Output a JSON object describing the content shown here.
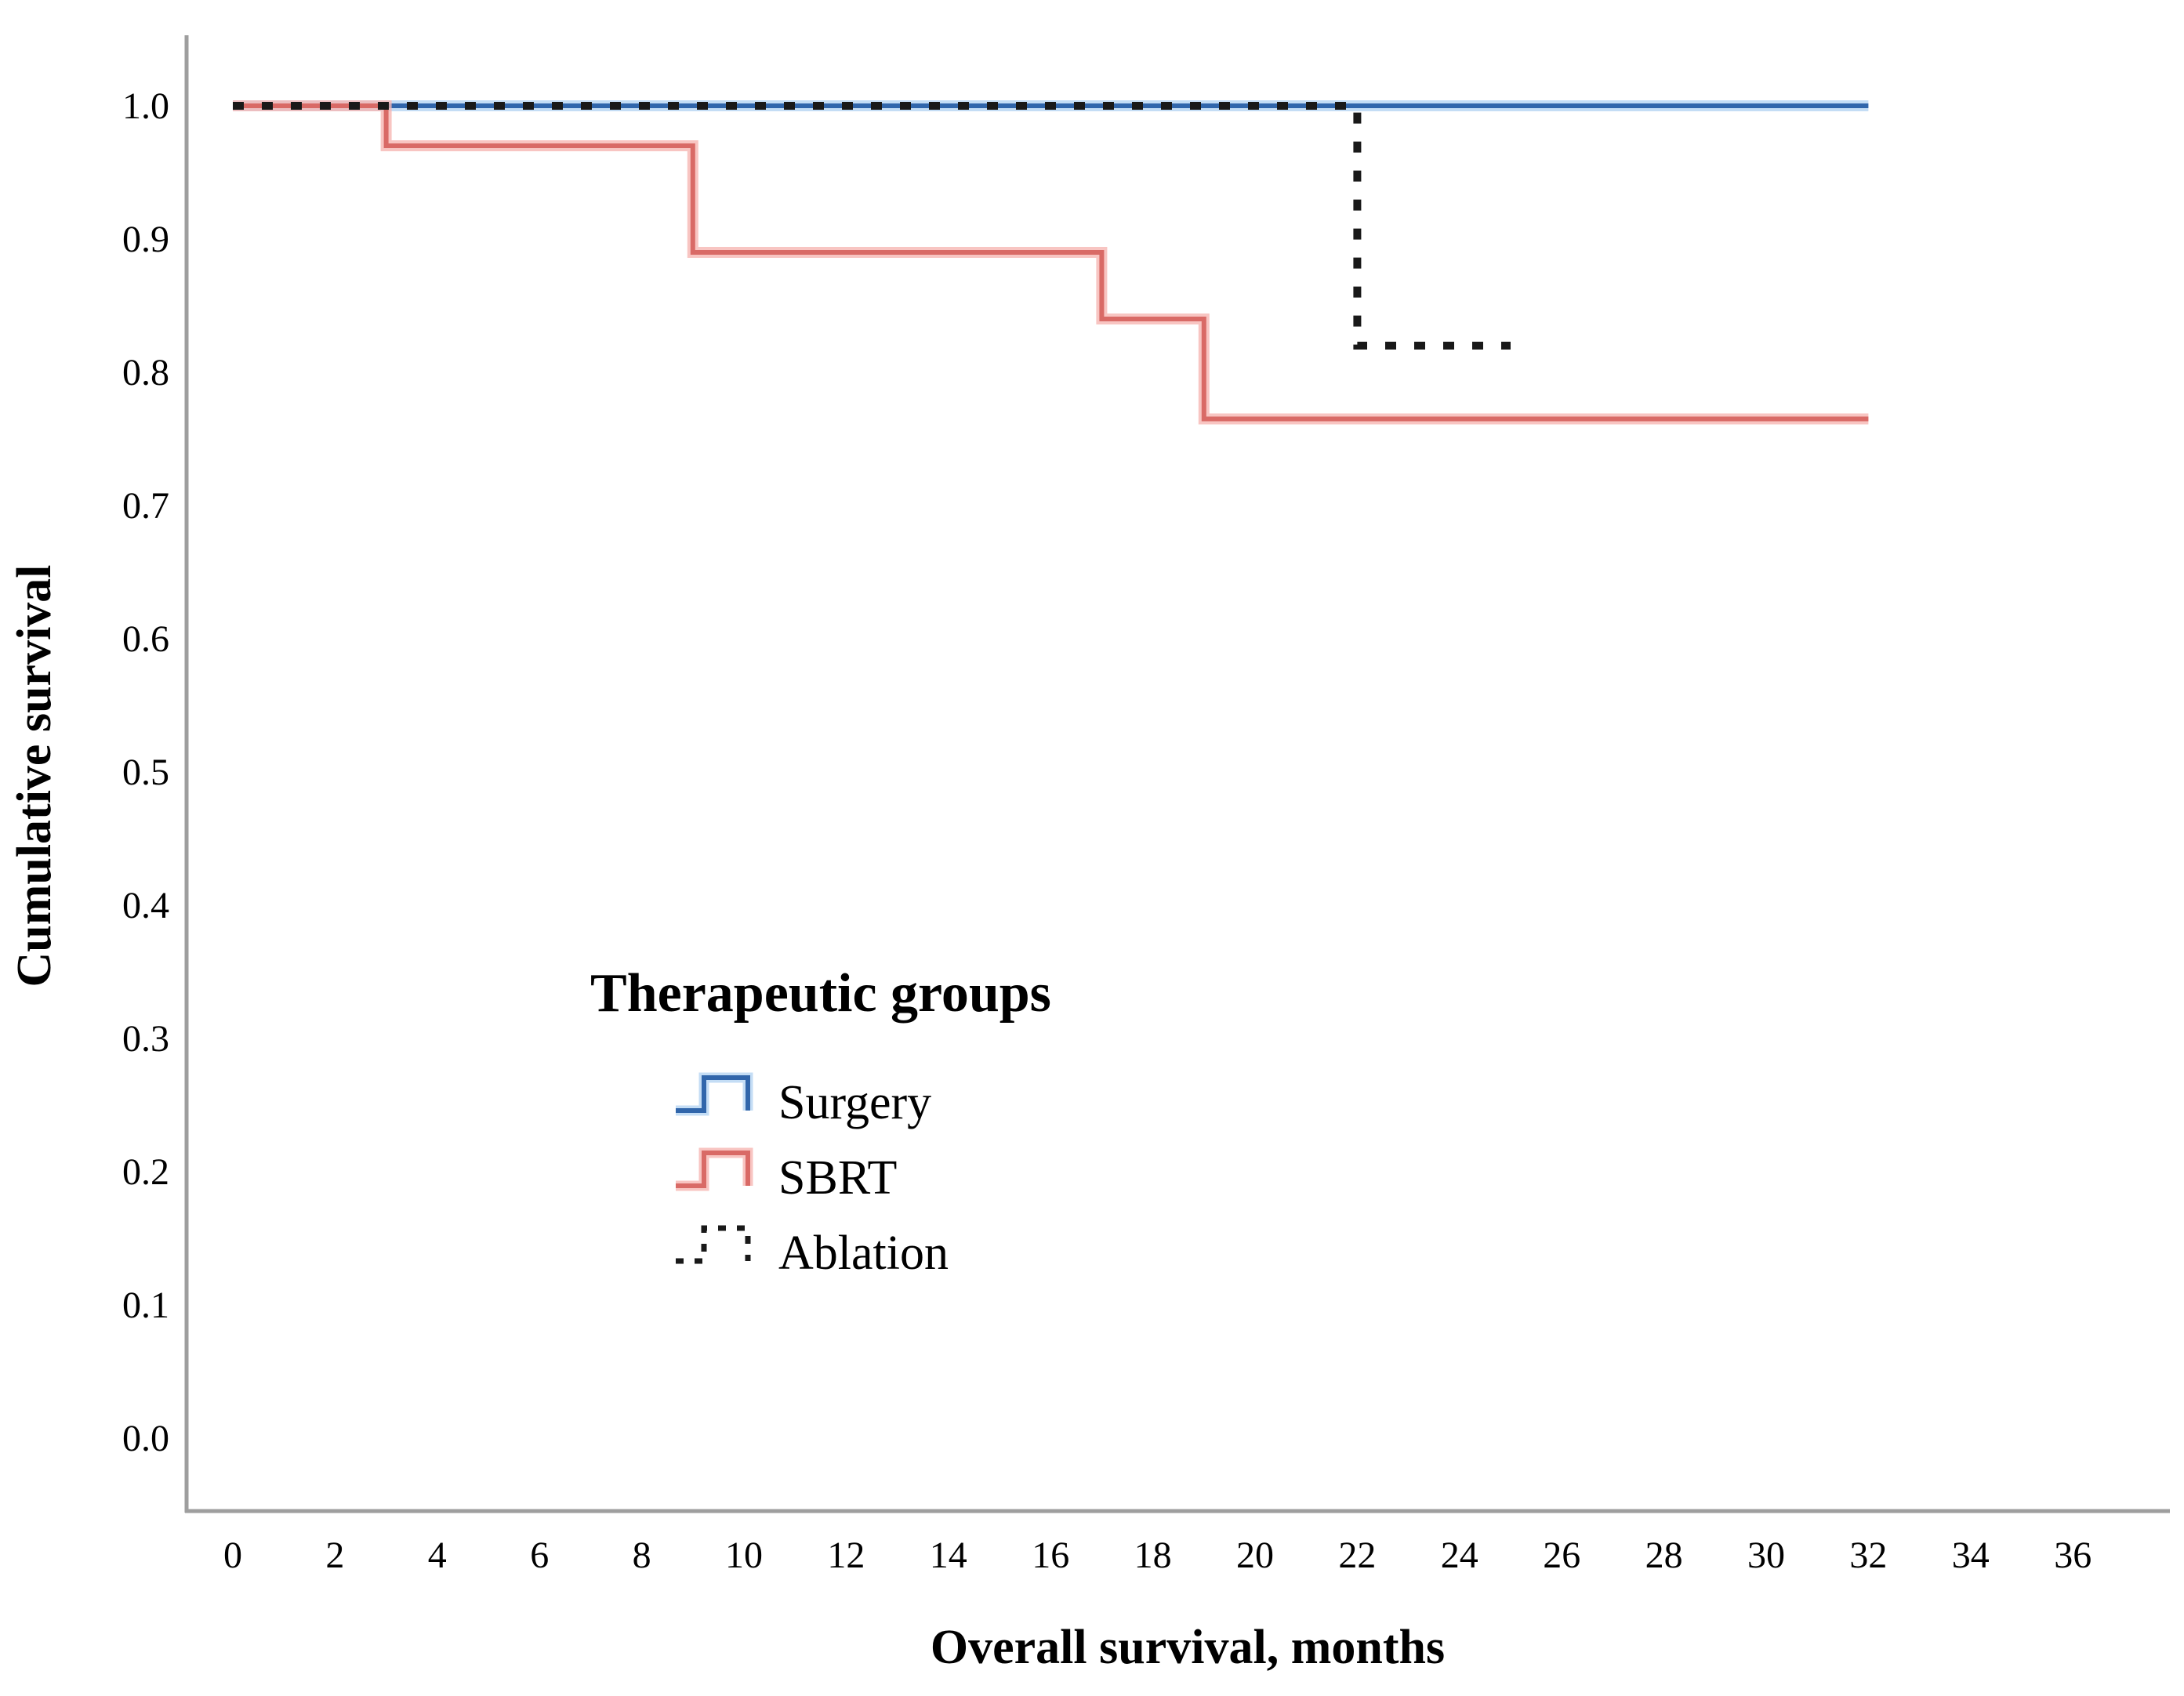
{
  "figure": {
    "background_color": "#ffffff",
    "axis_line_color": "#9e9e9e"
  },
  "axes": {
    "x_title": "Overall survival, months",
    "y_title": "Cumulative survival"
  },
  "legend": {
    "title": "Therapeutic groups",
    "position": "inside-left-middle"
  },
  "chart_data": {
    "type": "line",
    "subtype": "kaplan-meier-step-survival",
    "title": "",
    "xlabel": "Overall survival, months",
    "ylabel": "Cumulative survival",
    "xlim": [
      0,
      36
    ],
    "ylim": [
      0.0,
      1.0
    ],
    "x_ticks": [
      0,
      2,
      4,
      6,
      8,
      10,
      12,
      14,
      16,
      18,
      20,
      22,
      24,
      26,
      28,
      30,
      32,
      34,
      36
    ],
    "y_ticks": [
      "0.0",
      "0.1",
      "0.2",
      "0.3",
      "0.4",
      "0.5",
      "0.6",
      "0.7",
      "0.8",
      "0.9",
      "1.0"
    ],
    "grid": false,
    "legend_title": "Therapeutic groups",
    "legend_entries": [
      "Surgery",
      "SBRT",
      "Ablation"
    ],
    "series": [
      {
        "name": "Surgery",
        "color": "#3166ab",
        "halo_color": "#b5d4f2",
        "line_style": "solid",
        "steps": [
          [
            0,
            1.0
          ],
          [
            32,
            1.0
          ]
        ]
      },
      {
        "name": "SBRT",
        "color": "#d96a66",
        "halo_color": "#f6b6b3",
        "line_style": "solid",
        "steps": [
          [
            0,
            1.0
          ],
          [
            3,
            0.97
          ],
          [
            9,
            0.89
          ],
          [
            17,
            0.84
          ],
          [
            19,
            0.765
          ],
          [
            32,
            0.765
          ]
        ]
      },
      {
        "name": "Ablation",
        "color": "#191919",
        "halo_color": null,
        "line_style": "dotted",
        "steps": [
          [
            0,
            1.0
          ],
          [
            22,
            0.82
          ],
          [
            25,
            0.82
          ]
        ]
      }
    ]
  }
}
